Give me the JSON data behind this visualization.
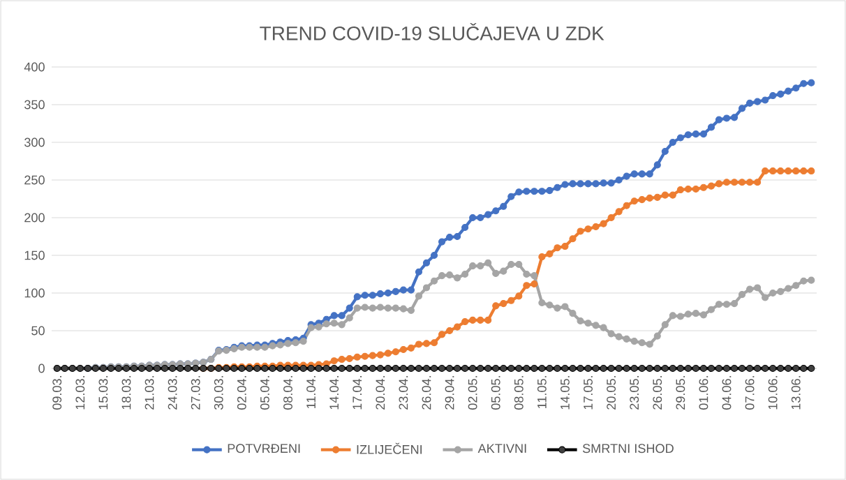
{
  "chart_data": {
    "type": "line",
    "title": "TREND COVID-19 SLUČAJEVA U ZDK",
    "categories": [
      "09.03.",
      null,
      null,
      "12.03.",
      null,
      null,
      "15.03.",
      null,
      null,
      "18.03.",
      null,
      null,
      "21.03.",
      null,
      null,
      "24.03.",
      null,
      null,
      "27.03.",
      null,
      null,
      "30.03.",
      null,
      null,
      "02.04.",
      null,
      null,
      "05.04.",
      null,
      null,
      "08.04.",
      null,
      null,
      "11.04.",
      null,
      null,
      "14.04.",
      null,
      null,
      "17.04.",
      null,
      null,
      "20.04.",
      null,
      null,
      "23.04.",
      null,
      null,
      "26.04.",
      null,
      null,
      "29.04.",
      null,
      null,
      "02.05.",
      null,
      null,
      "05.05.",
      null,
      null,
      "08.05.",
      null,
      null,
      "11.05.",
      null,
      null,
      "14.05.",
      null,
      null,
      "17.05.",
      null,
      null,
      "20.05.",
      null,
      null,
      "23.05.",
      null,
      null,
      "26.05.",
      null,
      null,
      "29.05.",
      null,
      null,
      "01.06.",
      null,
      null,
      "04.06.",
      null,
      null,
      "07.06.",
      null,
      null,
      "10.06.",
      null,
      null,
      "13.06.",
      null,
      null
    ],
    "series": [
      {
        "name": "POTVRĐENI",
        "color": "#4472c4",
        "values": [
          null,
          null,
          null,
          null,
          0,
          1,
          1,
          2,
          2,
          2,
          3,
          3,
          4,
          4,
          5,
          5,
          6,
          6,
          7,
          8,
          12,
          24,
          25,
          28,
          30,
          30,
          31,
          31,
          33,
          35,
          37,
          38,
          40,
          58,
          60,
          65,
          70,
          70,
          80,
          95,
          97,
          97,
          99,
          100,
          102,
          104,
          104,
          128,
          140,
          150,
          168,
          174,
          175,
          187,
          200,
          200,
          204,
          209,
          215,
          228,
          234,
          235,
          235,
          235,
          236,
          240,
          244,
          245,
          245,
          245,
          245,
          246,
          246,
          250,
          255,
          258,
          258,
          258,
          270,
          288,
          300,
          306,
          310,
          311,
          311,
          320,
          330,
          332,
          333,
          345,
          352,
          354,
          356,
          362,
          364,
          368,
          372,
          378,
          379
        ]
      },
      {
        "name": "IZLIJEČENI",
        "color": "#ed7d31",
        "values": [
          null,
          null,
          null,
          null,
          null,
          null,
          null,
          null,
          null,
          null,
          null,
          null,
          null,
          null,
          null,
          null,
          null,
          null,
          null,
          0,
          0,
          1,
          1,
          2,
          2,
          2,
          3,
          3,
          3,
          4,
          4,
          4,
          4,
          4,
          5,
          6,
          10,
          12,
          13,
          15,
          16,
          17,
          18,
          20,
          22,
          25,
          27,
          32,
          33,
          34,
          45,
          50,
          55,
          62,
          64,
          64,
          64,
          83,
          86,
          90,
          96,
          110,
          112,
          148,
          152,
          160,
          162,
          172,
          182,
          185,
          188,
          192,
          200,
          208,
          216,
          222,
          224,
          226,
          227,
          230,
          230,
          237,
          238,
          238,
          240,
          242,
          245,
          247,
          247,
          247,
          247,
          247,
          262,
          262,
          262,
          262,
          262,
          262,
          262
        ]
      },
      {
        "name": "AKTIVNI",
        "color": "#a5a5a5",
        "values": [
          0,
          0,
          0,
          0,
          0,
          1,
          1,
          2,
          2,
          2,
          3,
          3,
          4,
          4,
          5,
          5,
          6,
          6,
          7,
          8,
          12,
          23,
          24,
          26,
          28,
          28,
          28,
          28,
          30,
          31,
          33,
          34,
          36,
          54,
          55,
          59,
          60,
          58,
          67,
          80,
          81,
          80,
          81,
          80,
          80,
          79,
          77,
          96,
          107,
          116,
          123,
          124,
          120,
          125,
          136,
          136,
          140,
          126,
          129,
          138,
          138,
          125,
          123,
          87,
          84,
          80,
          82,
          73,
          63,
          60,
          57,
          54,
          46,
          42,
          39,
          36,
          34,
          32,
          43,
          58,
          70,
          69,
          72,
          73,
          71,
          78,
          85,
          85,
          86,
          98,
          105,
          107,
          94,
          100,
          102,
          106,
          110,
          116,
          117
        ]
      },
      {
        "name": "SMRTNI ISHOD",
        "color": "#000000",
        "values": [
          0,
          0,
          0,
          0,
          0,
          0,
          0,
          0,
          0,
          0,
          0,
          0,
          0,
          0,
          0,
          0,
          0,
          0,
          0,
          0,
          0,
          0,
          0,
          0,
          0,
          0,
          0,
          0,
          0,
          0,
          0,
          0,
          0,
          0,
          0,
          0,
          0,
          0,
          0,
          0,
          0,
          0,
          0,
          0,
          0,
          0,
          0,
          0,
          0,
          0,
          0,
          0,
          0,
          0,
          0,
          0,
          0,
          0,
          0,
          0,
          0,
          0,
          0,
          0,
          0,
          0,
          0,
          0,
          0,
          0,
          0,
          0,
          0,
          0,
          0,
          0,
          0,
          0,
          0,
          0,
          0,
          0,
          0,
          0,
          0,
          0,
          0,
          0,
          0,
          0,
          0,
          0,
          0,
          0,
          0,
          0,
          0,
          0,
          0
        ]
      }
    ],
    "ylim": [
      0,
      400
    ],
    "yticks": [
      0,
      50,
      100,
      150,
      200,
      250,
      300,
      350,
      400
    ],
    "grid": "y",
    "legend": "bottom",
    "marker": "circle",
    "line_style": "solid"
  }
}
